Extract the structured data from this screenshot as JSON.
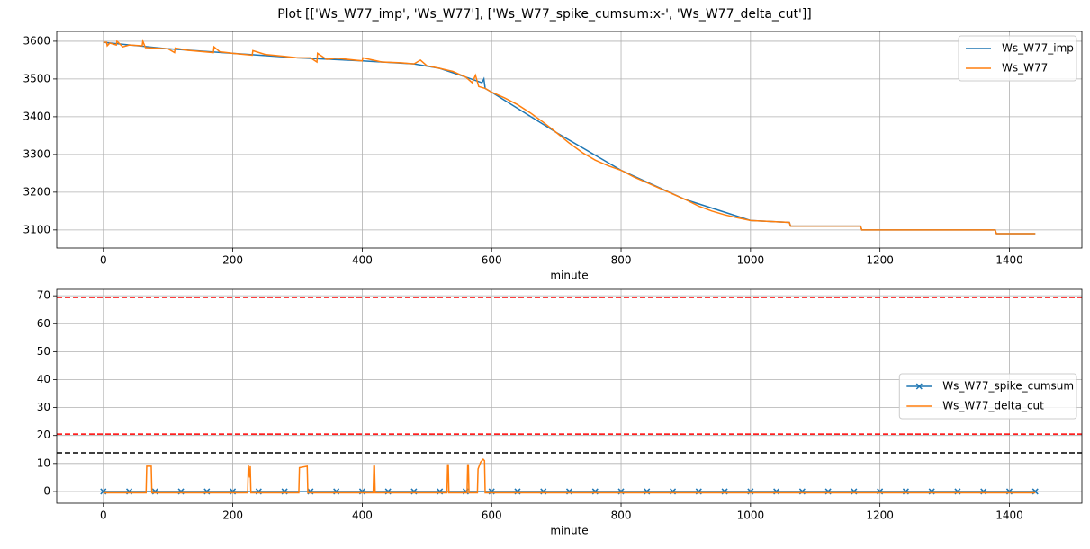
{
  "title": "Plot [['Ws_W77_imp', 'Ws_W77'], ['Ws_W77_spike_cumsum:x-', 'Ws_W77_delta_cut']]",
  "chart_data": [
    {
      "type": "line",
      "xlabel": "minute",
      "grid": true,
      "legend": "upper right",
      "xlim": [
        -72,
        1512
      ],
      "xticks": [
        0,
        200,
        400,
        600,
        800,
        1000,
        1200,
        1400
      ],
      "ylim": [
        3052,
        3626
      ],
      "yticks": [
        3100,
        3200,
        3300,
        3400,
        3500,
        3600
      ],
      "series": [
        {
          "name": "Ws_W77_imp",
          "color": "#1f77b4",
          "x": [
            0,
            100,
            200,
            300,
            400,
            480,
            520,
            560,
            585,
            588,
            590,
            600,
            700,
            800,
            900,
            1000,
            1060,
            1062,
            1170,
            1172,
            1378,
            1380,
            1440
          ],
          "values": [
            3597,
            3580,
            3568,
            3556,
            3548,
            3540,
            3528,
            3505,
            3490,
            3500,
            3475,
            3465,
            3358,
            3258,
            3180,
            3125,
            3120,
            3110,
            3110,
            3100,
            3100,
            3090,
            3090
          ]
        },
        {
          "name": "Ws_W77",
          "color": "#ff7f0e",
          "x": [
            0,
            5,
            6,
            10,
            20,
            21,
            30,
            40,
            60,
            61,
            65,
            100,
            110,
            111,
            130,
            170,
            171,
            180,
            200,
            230,
            231,
            250,
            280,
            300,
            320,
            330,
            331,
            345,
            360,
            400,
            401,
            430,
            460,
            480,
            490,
            500,
            520,
            540,
            560,
            570,
            575,
            580,
            590,
            600,
            620,
            640,
            660,
            680,
            700,
            720,
            740,
            760,
            780,
            800,
            820,
            840,
            860,
            880,
            900,
            920,
            940,
            960,
            980,
            1000,
            1060,
            1062,
            1170,
            1172,
            1378,
            1380,
            1440
          ],
          "values": [
            3597,
            3597,
            3588,
            3595,
            3590,
            3600,
            3585,
            3590,
            3588,
            3600,
            3583,
            3580,
            3570,
            3582,
            3576,
            3570,
            3585,
            3572,
            3568,
            3563,
            3575,
            3565,
            3560,
            3556,
            3556,
            3545,
            3568,
            3552,
            3555,
            3548,
            3556,
            3545,
            3543,
            3540,
            3550,
            3535,
            3528,
            3520,
            3505,
            3490,
            3510,
            3480,
            3475,
            3465,
            3450,
            3432,
            3410,
            3385,
            3358,
            3330,
            3305,
            3285,
            3270,
            3258,
            3240,
            3225,
            3210,
            3195,
            3180,
            3163,
            3150,
            3140,
            3132,
            3125,
            3120,
            3110,
            3110,
            3100,
            3100,
            3090,
            3090
          ]
        }
      ]
    },
    {
      "type": "line",
      "xlabel": "minute",
      "grid": true,
      "legend": "center right",
      "xlim": [
        -72,
        1512
      ],
      "xticks": [
        0,
        200,
        400,
        600,
        800,
        1000,
        1200,
        1400
      ],
      "ylim": [
        -4.2,
        72.3
      ],
      "yticks": [
        0,
        10,
        20,
        30,
        40,
        50,
        60,
        70
      ],
      "hlines": [
        {
          "value": 69.4,
          "color": "#ff0000"
        },
        {
          "value": 20.5,
          "color": "#ff0000"
        },
        {
          "value": 13.8,
          "color": "#000000"
        }
      ],
      "series": [
        {
          "name": "Ws_W77_spike_cumsum",
          "color": "#1f77b4",
          "marker": "x",
          "x": [
            0,
            40,
            80,
            120,
            160,
            200,
            240,
            280,
            320,
            360,
            400,
            440,
            480,
            520,
            560,
            600,
            640,
            680,
            720,
            760,
            800,
            840,
            880,
            920,
            960,
            1000,
            1040,
            1080,
            1120,
            1160,
            1200,
            1240,
            1280,
            1320,
            1360,
            1400,
            1440
          ],
          "values": [
            0,
            0,
            0,
            0,
            0,
            0,
            0,
            0,
            0,
            0,
            0,
            0,
            0,
            0,
            0,
            0,
            0,
            0,
            0,
            0,
            0,
            0,
            0,
            0,
            0,
            0,
            0,
            0,
            0,
            0,
            0,
            0,
            0,
            0,
            0,
            0,
            0
          ]
        },
        {
          "name": "Ws_W77_delta_cut",
          "color": "#ff7f0e",
          "x": [
            0,
            66,
            67,
            74,
            75,
            223,
            224,
            226,
            227,
            228,
            229,
            302,
            303,
            315,
            316,
            417,
            418,
            419,
            420,
            531,
            532,
            533,
            534,
            562,
            563,
            564,
            565,
            578,
            579,
            583,
            587,
            589,
            590,
            1440
          ],
          "values": [
            -0.5,
            -0.5,
            9,
            9,
            -0.5,
            -0.5,
            9.5,
            5,
            9,
            -0.5,
            -0.5,
            -0.5,
            8.5,
            9,
            -0.5,
            -0.5,
            9,
            9,
            -0.5,
            -0.5,
            9.5,
            9.5,
            -0.5,
            -0.5,
            9.5,
            9.5,
            -0.5,
            -0.5,
            8,
            10.5,
            11.5,
            11,
            -0.5,
            -0.5
          ]
        }
      ]
    }
  ]
}
